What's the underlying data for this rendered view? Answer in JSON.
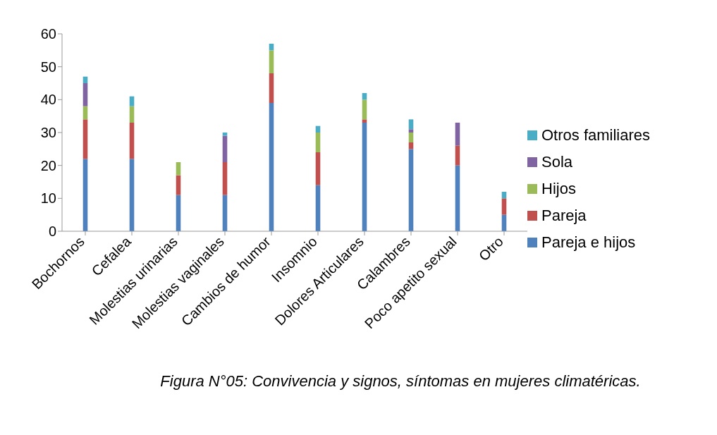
{
  "chart_data": {
    "type": "bar",
    "stacked": true,
    "categories": [
      "Bochornos",
      "Cefalea",
      "Molestias urinarias",
      "Molestias vaginales",
      "Cambios de humor",
      "Insomnio",
      "Dolores Articulares",
      "Calambres",
      "Poco apetito sexual",
      "Otro"
    ],
    "series": [
      {
        "name": "Pareja e hijos",
        "color": "#4f81bd",
        "values": [
          22,
          22,
          11,
          11,
          39,
          14,
          33,
          25,
          20,
          5
        ]
      },
      {
        "name": "Pareja",
        "color": "#c0504d",
        "values": [
          12,
          11,
          6,
          10,
          9,
          10,
          1,
          2,
          6,
          5
        ]
      },
      {
        "name": "Hijos",
        "color": "#9bbb59",
        "values": [
          4,
          5,
          4,
          0,
          7,
          6,
          6,
          3,
          0,
          0
        ]
      },
      {
        "name": "Sola",
        "color": "#8064a2",
        "values": [
          7,
          0,
          0,
          8,
          0,
          0,
          0,
          1,
          7,
          0
        ]
      },
      {
        "name": "Otros familiares",
        "color": "#4bacc6",
        "values": [
          2,
          3,
          0,
          1,
          2,
          2,
          2,
          3,
          0,
          2
        ]
      }
    ],
    "ylim": [
      0,
      60
    ],
    "yticks": [
      0,
      10,
      20,
      30,
      40,
      50,
      60
    ],
    "grid": false,
    "legend": "right",
    "annotations": [
      "Figura N°05: Convivencia y signos, síntomas en mujeres climatéricas."
    ]
  }
}
